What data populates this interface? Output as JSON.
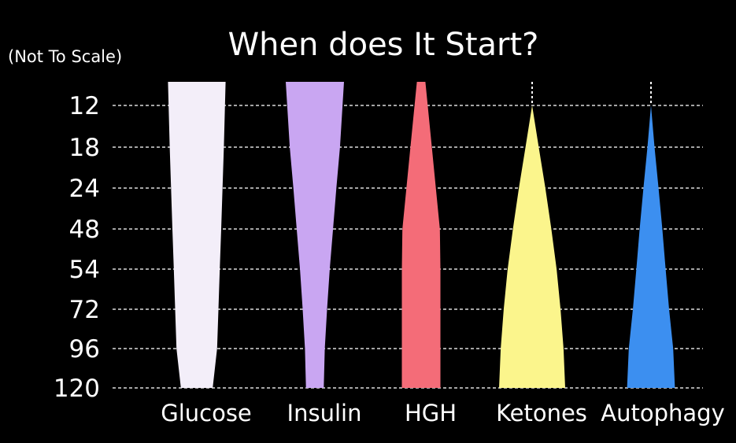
{
  "chart_data": {
    "type": "area",
    "title": "When does It Start?",
    "note": "(Not To Scale)",
    "y_ticks": [
      "12",
      "18",
      "24",
      "48",
      "54",
      "72",
      "96",
      "120"
    ],
    "categories": [
      "Glucose",
      "Insulin",
      "HGH",
      "Ketones",
      "Autophagy"
    ],
    "series": [
      {
        "name": "Glucose",
        "color": "#f3eef9",
        "widths": [
          0.85,
          0.8,
          0.76,
          0.72,
          0.68,
          0.64,
          0.6,
          0.47
        ]
      },
      {
        "name": "Insulin",
        "color": "#c9a6f2",
        "widths": [
          0.88,
          0.76,
          0.65,
          0.55,
          0.45,
          0.37,
          0.3,
          0.27
        ]
      },
      {
        "name": "HGH",
        "color": "#f46c78",
        "widths": [
          0.16,
          0.4,
          0.55,
          0.7,
          0.72,
          0.72,
          0.72,
          0.72
        ]
      },
      {
        "name": "Ketones",
        "color": "#fbf58c",
        "widths": [
          0.0,
          0.2,
          0.4,
          0.58,
          0.74,
          0.86,
          0.95,
          1.0
        ]
      },
      {
        "name": "Autophagy",
        "color": "#3c8ff0",
        "widths": [
          0.0,
          0.14,
          0.3,
          0.45,
          0.58,
          0.72,
          0.88,
          0.95
        ]
      }
    ],
    "grid": true,
    "legend": "none"
  }
}
